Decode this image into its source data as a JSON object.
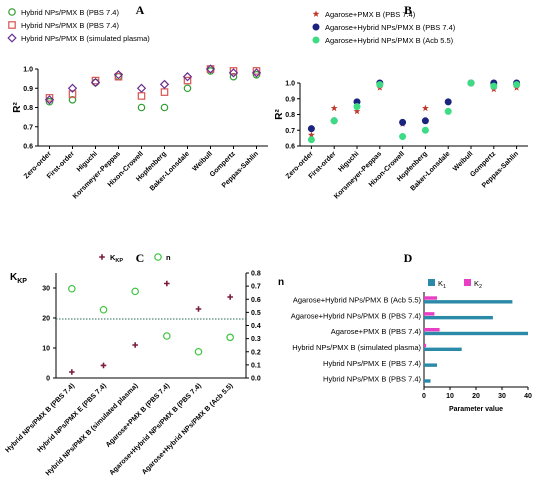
{
  "chart_data": [
    {
      "id": "A",
      "type": "scatter",
      "panel_label": "A",
      "ylabel": "R²",
      "ylim": [
        0.6,
        1.0
      ],
      "yticks": [
        "0.6",
        "0.7",
        "0.8",
        "0.9",
        "1.0"
      ],
      "categories": [
        "Zero-order",
        "First-order",
        "Higuchi",
        "Korsmeyer-Peppas",
        "Hixon-Crowell",
        "Hopfenberg",
        "Baker-Lonsdale",
        "Weibull",
        "Gompertz",
        "Peppas-Sahlin"
      ],
      "series": [
        {
          "name": "Hybrid NPs/PMX B (PBS 7.4)",
          "marker": "circle-open",
          "color": "#2e9e2e",
          "values": [
            0.83,
            0.84,
            0.93,
            0.96,
            0.8,
            0.8,
            0.9,
            0.99,
            0.96,
            0.97
          ]
        },
        {
          "name": "Hybrid NPs/PMX B (PBS 7.4)",
          "marker": "square-open",
          "color": "#d9534f",
          "values": [
            0.85,
            0.87,
            0.94,
            0.96,
            0.86,
            0.88,
            0.94,
            1.0,
            0.99,
            0.99
          ]
        },
        {
          "name": "Hybrid NPs/PMX B (simulated plasma)",
          "marker": "diamond-open",
          "color": "#6a2c91",
          "values": [
            0.84,
            0.9,
            0.93,
            0.97,
            0.9,
            0.92,
            0.96,
            1.0,
            0.98,
            0.98
          ]
        }
      ]
    },
    {
      "id": "B",
      "type": "scatter",
      "panel_label": "B",
      "ylabel": "R²",
      "ylim": [
        0.6,
        1.0
      ],
      "yticks": [
        "0.6",
        "0.7",
        "0.8",
        "0.9",
        "1.0"
      ],
      "categories": [
        "Zero-order",
        "First-order",
        "Higuchi",
        "Korsmeyer-Peppas",
        "Hixon-Crowell",
        "Hopfenberg",
        "Baker-Lonsdale",
        "Weibull",
        "Gompertz",
        "Peppas-Sahlin"
      ],
      "series": [
        {
          "name": "Agarose+PMX B (PBS 7.4)",
          "marker": "star",
          "color": "#c0392b",
          "values": [
            0.67,
            0.84,
            0.82,
            0.97,
            0.74,
            0.84,
            0.82,
            1.0,
            0.96,
            0.97
          ]
        },
        {
          "name": "Agarose+Hybrid NPs/PMX B (PBS 7.4)",
          "marker": "circle-filled",
          "color": "#1a237e",
          "values": [
            0.71,
            0.76,
            0.88,
            1.0,
            0.75,
            0.76,
            0.88,
            1.0,
            1.0,
            1.0
          ]
        },
        {
          "name": "Agarose+Hybrid NPs/PMX B (Acb 5.5)",
          "marker": "circle-filled",
          "color": "#3ddc84",
          "values": [
            0.64,
            0.76,
            0.85,
            0.99,
            0.66,
            0.7,
            0.82,
            1.0,
            0.98,
            0.99
          ]
        }
      ]
    },
    {
      "id": "C",
      "type": "scatter",
      "panel_label": "C",
      "ylabel_left": "K",
      "ylabel_left_sub": "KP",
      "ylabel_right": "n",
      "ylim_left": [
        0,
        35
      ],
      "yticks_left": [
        "0",
        "10",
        "20",
        "30"
      ],
      "ylim_right": [
        0,
        0.8
      ],
      "yticks_right": [
        "0.0",
        "0.1",
        "0.2",
        "0.3",
        "0.4",
        "0.5",
        "0.6",
        "0.7",
        "0.8"
      ],
      "reference_line_right": 0.45,
      "categories": [
        "Hybrid NPs/PMX B (PBS 7.4)",
        "Hybrid NPs/PMX E (PBS 7.4)",
        "Hybrid NPs/PMX B (simulated plasma)",
        "Agarose+PMX B (PBS 7.4)",
        "Agarose+Hybrid NPs/PMX B (PBS 7.4)",
        "Agarose+Hybrid NPs/PMX B (Acb 5.5)"
      ],
      "legend": [
        {
          "name": "K",
          "sub": "KP"
        },
        {
          "name": "n",
          "sub": ""
        }
      ],
      "series": [
        {
          "name": "KKP",
          "axis": "left",
          "marker": "plus",
          "color": "#7b1c3a",
          "values": [
            2,
            4.2,
            11,
            31.5,
            23,
            27
          ]
        },
        {
          "name": "n",
          "axis": "right",
          "marker": "circle-open",
          "color": "#3cc43c",
          "values": [
            0.68,
            0.52,
            0.66,
            0.32,
            0.2,
            0.31
          ]
        }
      ]
    },
    {
      "id": "D",
      "type": "bar",
      "orientation": "horizontal",
      "panel_label": "D",
      "xlabel": "Parameter value",
      "xlim": [
        0,
        40
      ],
      "xticks": [
        "0",
        "10",
        "20",
        "30",
        "40"
      ],
      "categories": [
        "Agarose+Hybrid NPs/PMX B (Acb 5.5)",
        "Agarose+Hybrid NPs/PMX B (PBS 7.4)",
        "Agarose+PMX B (PBS 7.4)",
        "Hybrid NPs/PMX B (simulated plasma)",
        "Hybrid NPs/PMX E (PBS 7.4)",
        "Hybrid NPs/PMX B (PBS 7.4)"
      ],
      "legend": [
        {
          "name": "K",
          "sub": "1"
        },
        {
          "name": "K",
          "sub": "2"
        }
      ],
      "series": [
        {
          "name": "K1",
          "color": "#2a8aa8",
          "values": [
            34,
            26.5,
            40,
            14.5,
            5,
            2.5
          ]
        },
        {
          "name": "K2",
          "color": "#e83ec4",
          "values": [
            5,
            4,
            6,
            0.8,
            0,
            0
          ]
        }
      ]
    }
  ]
}
